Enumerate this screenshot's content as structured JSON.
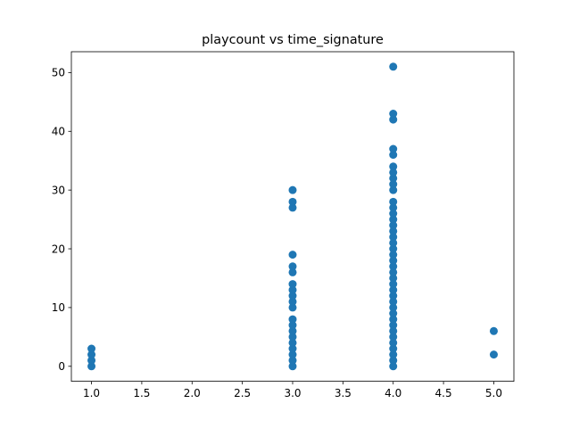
{
  "chart_data": {
    "type": "scatter",
    "title": "playcount vs time_signature",
    "xlabel": "",
    "ylabel": "",
    "xlim": [
      0.8,
      5.2
    ],
    "ylim": [
      -2.55,
      53.55
    ],
    "x_ticks": [
      "1.0",
      "1.5",
      "2.0",
      "2.5",
      "3.0",
      "3.5",
      "4.0",
      "4.5",
      "5.0"
    ],
    "x_tick_values": [
      1.0,
      1.5,
      2.0,
      2.5,
      3.0,
      3.5,
      4.0,
      4.5,
      5.0
    ],
    "y_ticks": [
      "0",
      "10",
      "20",
      "30",
      "40",
      "50"
    ],
    "y_tick_values": [
      0,
      10,
      20,
      30,
      40,
      50
    ],
    "grid": false,
    "marker_color": "#1f77b4",
    "series": [
      {
        "points": [
          [
            1,
            0
          ],
          [
            1,
            1
          ],
          [
            1,
            2
          ],
          [
            1,
            3
          ],
          [
            3,
            0
          ],
          [
            3,
            1
          ],
          [
            3,
            2
          ],
          [
            3,
            3
          ],
          [
            3,
            4
          ],
          [
            3,
            5
          ],
          [
            3,
            6
          ],
          [
            3,
            7
          ],
          [
            3,
            8
          ],
          [
            3,
            10
          ],
          [
            3,
            11
          ],
          [
            3,
            12
          ],
          [
            3,
            13
          ],
          [
            3,
            14
          ],
          [
            3,
            16
          ],
          [
            3,
            17
          ],
          [
            3,
            19
          ],
          [
            3,
            27
          ],
          [
            3,
            28
          ],
          [
            3,
            30
          ],
          [
            4,
            0
          ],
          [
            4,
            1
          ],
          [
            4,
            2
          ],
          [
            4,
            3
          ],
          [
            4,
            4
          ],
          [
            4,
            5
          ],
          [
            4,
            6
          ],
          [
            4,
            7
          ],
          [
            4,
            8
          ],
          [
            4,
            9
          ],
          [
            4,
            10
          ],
          [
            4,
            11
          ],
          [
            4,
            12
          ],
          [
            4,
            13
          ],
          [
            4,
            14
          ],
          [
            4,
            15
          ],
          [
            4,
            16
          ],
          [
            4,
            17
          ],
          [
            4,
            18
          ],
          [
            4,
            19
          ],
          [
            4,
            20
          ],
          [
            4,
            21
          ],
          [
            4,
            22
          ],
          [
            4,
            23
          ],
          [
            4,
            24
          ],
          [
            4,
            25
          ],
          [
            4,
            26
          ],
          [
            4,
            27
          ],
          [
            4,
            28
          ],
          [
            4,
            30
          ],
          [
            4,
            31
          ],
          [
            4,
            32
          ],
          [
            4,
            33
          ],
          [
            4,
            34
          ],
          [
            4,
            36
          ],
          [
            4,
            37
          ],
          [
            4,
            42
          ],
          [
            4,
            43
          ],
          [
            4,
            51
          ],
          [
            5,
            2
          ],
          [
            5,
            6
          ]
        ]
      }
    ]
  }
}
